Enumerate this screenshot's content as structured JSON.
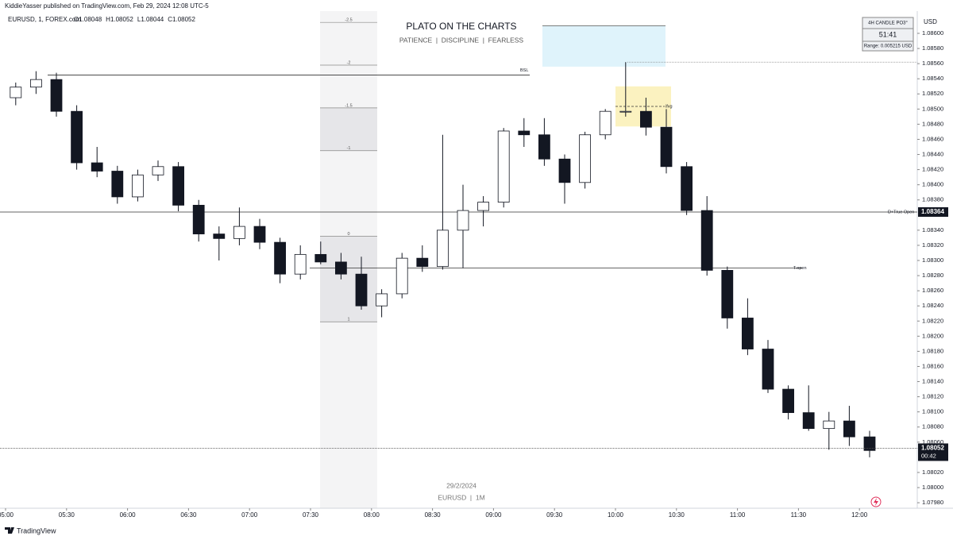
{
  "header": "KiddieYasser published on TradingView.com, Feb 29, 2024 12:08 UTC-5",
  "footer_brand": "TradingView",
  "chart_data": {
    "type": "candlestick",
    "symbol": "EURUSD, 1, FOREX.com",
    "ohlc_legend": [
      {
        "label": "O",
        "value": 1.08048
      },
      {
        "label": "H",
        "value": 1.08052
      },
      {
        "label": "L",
        "value": 1.08044
      },
      {
        "label": "C",
        "value": 1.08052
      }
    ],
    "title": "PLATO ON THE CHARTS",
    "subtitle": "PATIENCE  |  DISCIPLINE  |  FEARLESS",
    "date_watermark": "29/2/2024",
    "symbol_watermark": "EURUSD  |  1M",
    "currency": "USD",
    "info_box": {
      "title": "4H CANDLE PO3°",
      "timer": "51:41",
      "range": "Range: 0.005215 USD"
    },
    "x": [
      "05:00",
      "05:10",
      "05:20",
      "05:30",
      "05:40",
      "05:50",
      "06:00",
      "06:10",
      "06:20",
      "06:30",
      "06:40",
      "06:50",
      "07:00",
      "07:10",
      "07:20",
      "07:30",
      "07:40",
      "07:50",
      "08:00",
      "08:10",
      "08:20",
      "08:30",
      "08:40",
      "08:50",
      "09:00",
      "09:10",
      "09:20",
      "09:30",
      "09:40",
      "09:50",
      "10:00",
      "10:10",
      "10:20",
      "10:30",
      "10:40",
      "10:50",
      "11:00",
      "11:10",
      "11:20",
      "11:30",
      "11:40",
      "11:50",
      "12:00"
    ],
    "open": [
      1.08515,
      1.08529,
      1.08539,
      1.08497,
      1.08429,
      1.08418,
      1.08384,
      1.08413,
      1.08424,
      1.08373,
      1.08335,
      1.08329,
      1.08345,
      1.08324,
      1.08282,
      1.08308,
      1.08298,
      1.08282,
      1.0824,
      1.08256,
      1.08303,
      1.08292,
      1.0834,
      1.08366,
      1.08377,
      1.08471,
      1.08466,
      1.08434,
      1.08403,
      1.08466,
      1.08497,
      1.08497,
      1.08476,
      1.08424,
      1.08366,
      1.08287,
      1.08224,
      1.08183,
      1.0813,
      1.08099,
      1.08078,
      1.08088,
      1.08067
    ],
    "high": [
      1.08535,
      1.0855,
      1.08548,
      1.08505,
      1.0845,
      1.08425,
      1.0842,
      1.08432,
      1.0843,
      1.0838,
      1.08345,
      1.0837,
      1.08355,
      1.0833,
      1.0832,
      1.08325,
      1.0831,
      1.08305,
      1.08262,
      1.0831,
      1.0832,
      1.08466,
      1.084,
      1.08385,
      1.08475,
      1.08488,
      1.08488,
      1.0844,
      1.0847,
      1.085,
      1.08562,
      1.08515,
      1.085,
      1.0843,
      1.08385,
      1.08292,
      1.0825,
      1.08195,
      1.08135,
      1.08135,
      1.081,
      1.08108,
      1.08075
    ],
    "low": [
      1.08505,
      1.0852,
      1.0849,
      1.0842,
      1.0841,
      1.08375,
      1.08378,
      1.08405,
      1.08365,
      1.08325,
      1.083,
      1.0832,
      1.08315,
      1.0827,
      1.08275,
      1.08295,
      1.08275,
      1.08235,
      1.08225,
      1.0825,
      1.08285,
      1.08288,
      1.0829,
      1.08345,
      1.0837,
      1.0845,
      1.08425,
      1.08375,
      1.08395,
      1.0846,
      1.0849,
      1.08465,
      1.08415,
      1.0836,
      1.0828,
      1.0821,
      1.08175,
      1.08125,
      1.0809,
      1.08075,
      1.0805,
      1.08055,
      1.0804
    ],
    "close": [
      1.08529,
      1.08539,
      1.08497,
      1.08429,
      1.08418,
      1.08384,
      1.08413,
      1.08424,
      1.08373,
      1.08335,
      1.08329,
      1.08345,
      1.08324,
      1.08282,
      1.08308,
      1.08298,
      1.08282,
      1.0824,
      1.08256,
      1.08303,
      1.08292,
      1.0834,
      1.08366,
      1.08377,
      1.08471,
      1.08466,
      1.08434,
      1.08403,
      1.08466,
      1.08497,
      1.08497,
      1.08476,
      1.08424,
      1.08366,
      1.08287,
      1.08224,
      1.08183,
      1.0813,
      1.08099,
      1.08078,
      1.08088,
      1.08067,
      1.08049
    ],
    "xticks": [
      "05:00",
      "05:30",
      "06:00",
      "06:30",
      "07:00",
      "07:30",
      "08:00",
      "08:30",
      "09:00",
      "09:30",
      "10:00",
      "10:30",
      "11:00",
      "11:30",
      "12:00"
    ],
    "ylim": [
      1.0798,
      1.0862
    ],
    "yticks": [
      {
        "value": 1.086,
        "label": "1.08600"
      },
      {
        "value": 1.0858,
        "label": "1.08580"
      },
      {
        "value": 1.0856,
        "label": "1.08560"
      },
      {
        "value": 1.0854,
        "label": "1.08540"
      },
      {
        "value": 1.0852,
        "label": "1.08520"
      },
      {
        "value": 1.085,
        "label": "1.08500"
      },
      {
        "value": 1.0848,
        "label": "1.08480"
      },
      {
        "value": 1.0846,
        "label": "1.08460"
      },
      {
        "value": 1.0844,
        "label": "1.08440"
      },
      {
        "value": 1.0842,
        "label": "1.08420"
      },
      {
        "value": 1.084,
        "label": "1.08400"
      },
      {
        "value": 1.0838,
        "label": "1.08380"
      },
      {
        "value": 1.0834,
        "label": "1.08340"
      },
      {
        "value": 1.0832,
        "label": "1.08320"
      },
      {
        "value": 1.083,
        "label": "1.08300"
      },
      {
        "value": 1.0828,
        "label": "1.08280"
      },
      {
        "value": 1.0826,
        "label": "1.08260"
      },
      {
        "value": 1.0824,
        "label": "1.08240"
      },
      {
        "value": 1.0822,
        "label": "1.08220"
      },
      {
        "value": 1.082,
        "label": "1.08200"
      },
      {
        "value": 1.0818,
        "label": "1.08180"
      },
      {
        "value": 1.0816,
        "label": "1.08160"
      },
      {
        "value": 1.0814,
        "label": "1.08140"
      },
      {
        "value": 1.0812,
        "label": "1.08120"
      },
      {
        "value": 1.081,
        "label": "1.08100"
      },
      {
        "value": 1.0808,
        "label": "1.08080"
      },
      {
        "value": 1.0806,
        "label": "1.08060"
      },
      {
        "value": 1.0802,
        "label": "1.08020"
      },
      {
        "value": 1.08,
        "label": "1.08000"
      },
      {
        "value": 1.0798,
        "label": "1.07980"
      }
    ],
    "levels": [
      {
        "label": "BSL",
        "value": 1.08545
      },
      {
        "label": "D+True Open",
        "value": 1.08364
      },
      {
        "label": "T.open",
        "value": 1.0829
      }
    ],
    "zones": [
      {
        "top": 1.0861,
        "bottom": 1.08556,
        "color": "#dff3fb"
      },
      {
        "label": "ifvg",
        "top": 1.0853,
        "bottom": 1.08477,
        "color": "#fbf2c0"
      }
    ],
    "fib_levels": [
      -2.5,
      -2,
      -1.5,
      -1,
      0,
      1
    ],
    "fib_range": [
      1.08332,
      1.08219
    ],
    "last_price": 1.08052,
    "countdown": "00:42",
    "colors": {
      "up": "#ffffff",
      "down": "#131722",
      "wick": "#131722"
    }
  }
}
